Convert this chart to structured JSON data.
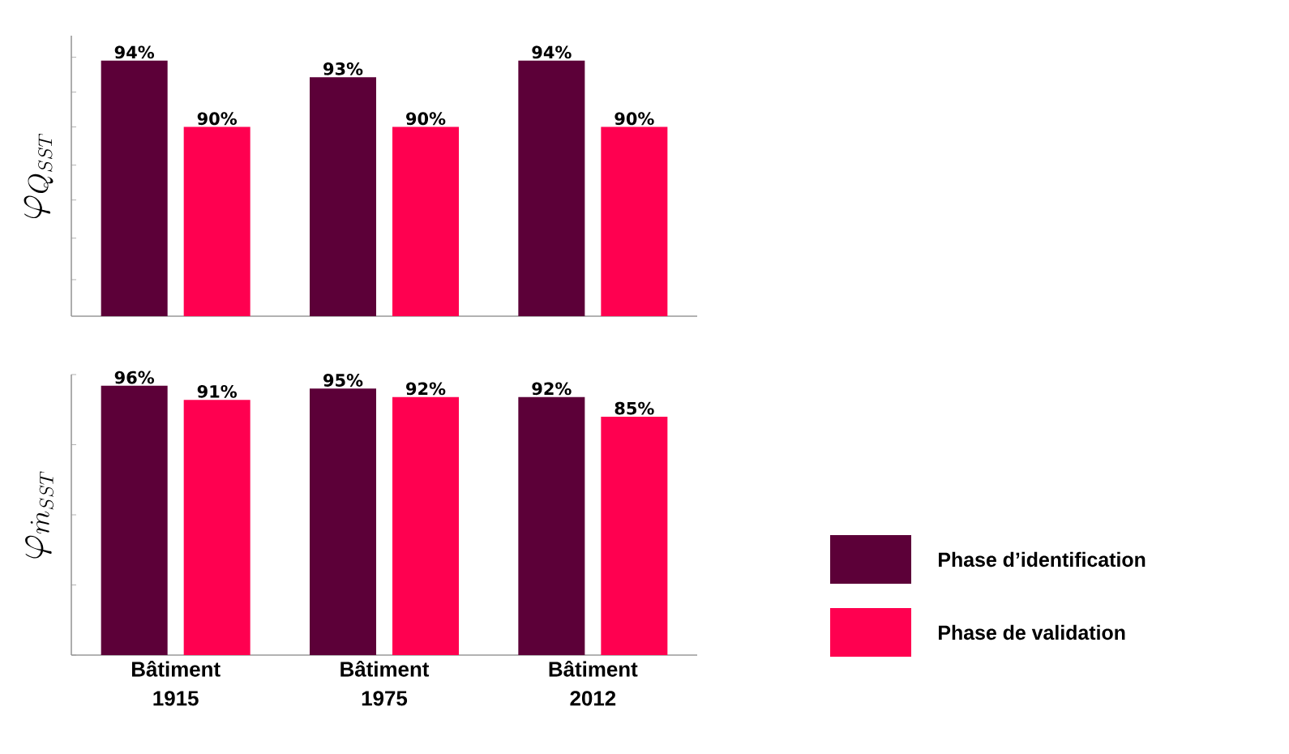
{
  "chart_data": [
    {
      "type": "bar",
      "ylabel": "\\varphi_{Q_{SST}}",
      "categories": [
        null,
        null,
        null
      ],
      "tick_labels": false,
      "ylim": [
        78.6,
        95.5
      ],
      "yticks": [
        {
          "value": 80.8,
          "label": null
        },
        {
          "value": 83.3,
          "label": null
        },
        {
          "value": 85.6,
          "label": null
        },
        {
          "value": 87.7,
          "label": null
        },
        {
          "value": 90,
          "label": null
        },
        {
          "value": 92.1,
          "label": null
        },
        {
          "value": 94.2,
          "label": null
        }
      ],
      "series": [
        {
          "color": "#5c0038",
          "values": [
            94,
            93,
            94
          ],
          "value_labels": [
            "94%",
            "93%",
            "94%"
          ]
        },
        {
          "color": "#ff0050",
          "values": [
            90,
            90,
            90
          ],
          "value_labels": [
            "90%",
            "90%",
            "90%"
          ]
        }
      ]
    },
    {
      "type": "bar",
      "ylabel": "\\varphi_{\\dot{m}_{SST}}",
      "categories": [
        "Bâtiment 1915",
        "Bâtiment 1975",
        "Bâtiment 2012"
      ],
      "tick_labels": "x",
      "legend": "right",
      "ylim": [
        0,
        100
      ],
      "yticks": [
        {
          "value": 0,
          "label": null
        },
        {
          "value": 25,
          "label": null
        },
        {
          "value": 50,
          "label": null
        },
        {
          "value": 75,
          "label": null
        },
        {
          "value": 100,
          "label": null
        }
      ],
      "series": [
        {
          "name": "Phase d’identification",
          "color": "#5c0038",
          "values": [
            96,
            95,
            92
          ],
          "value_labels": [
            "96%",
            "95%",
            "92%"
          ]
        },
        {
          "name": "Phase de validation",
          "color": "#ff0050",
          "values": [
            91,
            92,
            85
          ],
          "value_labels": [
            "91%",
            "92%",
            "85%"
          ]
        }
      ]
    }
  ]
}
